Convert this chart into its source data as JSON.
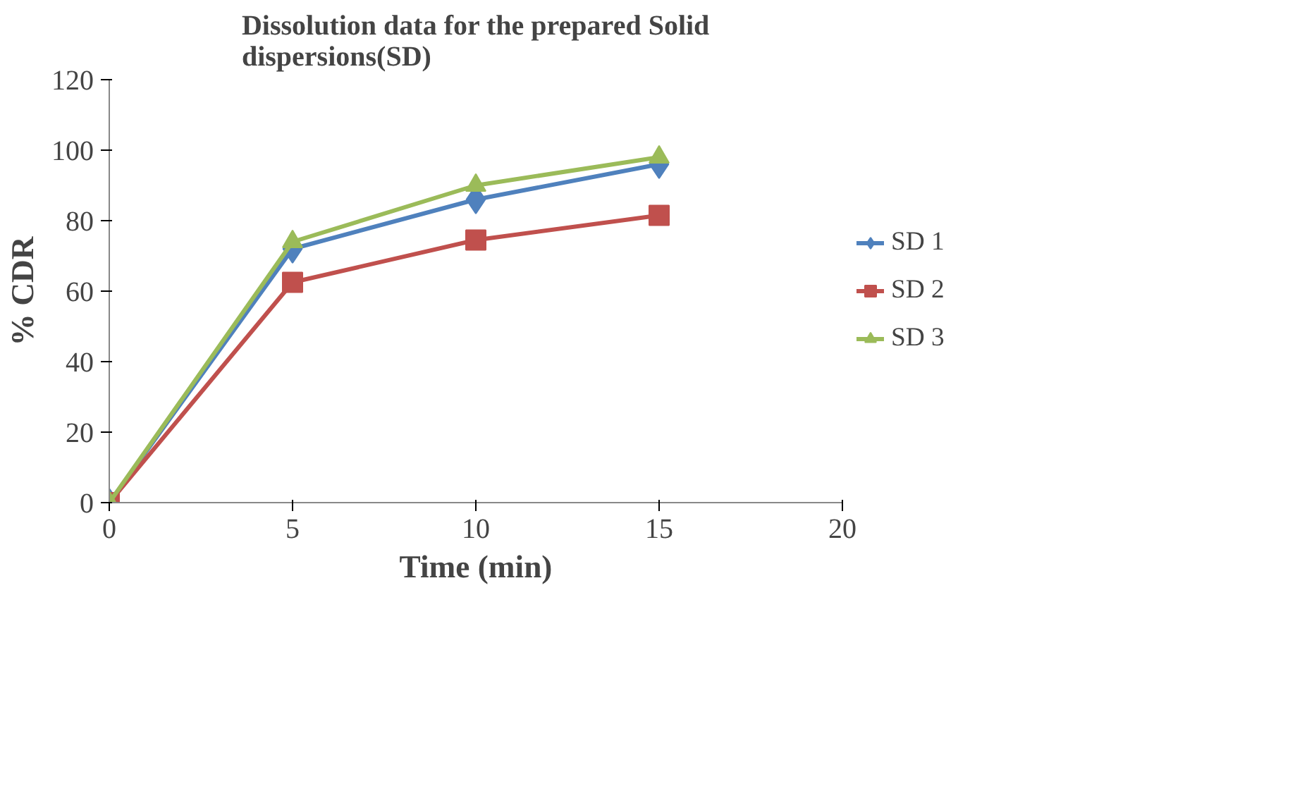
{
  "chart_data": {
    "type": "line",
    "title": "Dissolution data for the prepared Solid dispersions(SD)",
    "xlabel": "Time (min)",
    "ylabel": "% CDR",
    "x": [
      0,
      5,
      10,
      15
    ],
    "series": [
      {
        "name": "SD 1",
        "color": "#4f81bd",
        "values": [
          0,
          72,
          86,
          96
        ],
        "marker": "diamond"
      },
      {
        "name": "SD 2",
        "color": "#c0504d",
        "values": [
          0,
          62.5,
          74.5,
          81.5
        ],
        "marker": "square"
      },
      {
        "name": "SD 3",
        "color": "#9bbb59",
        "values": [
          0,
          74,
          90,
          98
        ],
        "marker": "triangle"
      }
    ],
    "xlim": [
      0,
      20
    ],
    "xticks": [
      0,
      5,
      10,
      15,
      20
    ],
    "ylim": [
      0,
      120
    ],
    "yticks": [
      0,
      20,
      40,
      60,
      80,
      100,
      120
    ],
    "grid": false,
    "legend": "right",
    "line_style": "solid"
  }
}
